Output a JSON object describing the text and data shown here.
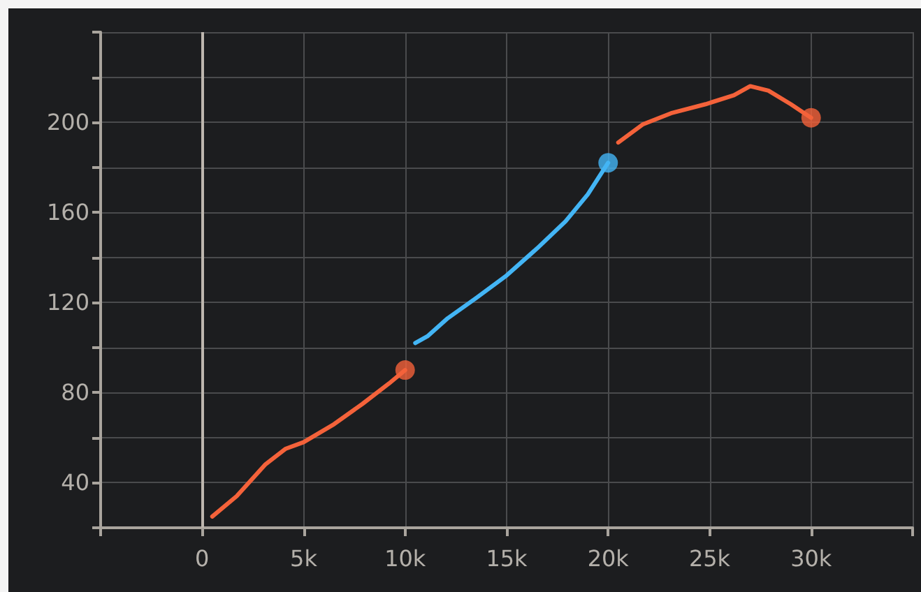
{
  "chart_data": {
    "type": "line",
    "xlim": [
      -5000,
      35000
    ],
    "ylim": [
      20,
      240
    ],
    "xticks": [
      {
        "value": -5000,
        "label": null
      },
      0,
      {
        "value": 5000,
        "label": "5k"
      },
      {
        "value": 10000,
        "label": "10k"
      },
      {
        "value": 15000,
        "label": "15k"
      },
      {
        "value": 20000,
        "label": "20k"
      },
      {
        "value": 25000,
        "label": "25k"
      },
      {
        "value": 30000,
        "label": "30k"
      },
      {
        "value": 35000,
        "label": null
      }
    ],
    "yticks": [
      {
        "value": 20,
        "label": null
      },
      40,
      {
        "value": 60,
        "label": null
      },
      80,
      {
        "value": 100,
        "label": null
      },
      120,
      {
        "value": 140,
        "label": null
      },
      160,
      {
        "value": 180,
        "label": null
      },
      200,
      {
        "value": 220,
        "label": null
      },
      {
        "value": 240,
        "label": null
      }
    ],
    "grid": true,
    "ref_lines": [
      {
        "axis": "x",
        "value": 0,
        "color": "#bdb6ae"
      }
    ],
    "series": [
      {
        "color": "#f4623a",
        "x": [
          500,
          1700,
          3100,
          4100,
          5000,
          6500,
          7900,
          9200,
          10000
        ],
        "values": [
          25,
          34,
          48,
          55,
          58,
          66,
          75,
          84,
          90
        ]
      },
      {
        "color": "#43b5f5",
        "x": [
          10500,
          11100,
          12100,
          13500,
          15000,
          16500,
          17900,
          19000,
          20000
        ],
        "values": [
          102,
          105,
          113,
          122,
          132,
          144,
          156,
          168,
          182
        ]
      },
      {
        "color": "#f4623a",
        "x": [
          20500,
          21700,
          23100,
          24800,
          26200,
          27000,
          27900,
          29000,
          30000
        ],
        "values": [
          191,
          199,
          204,
          208,
          212,
          216,
          214,
          208,
          202
        ]
      },
      {
        "type": "scatter",
        "marker": "circle",
        "color": "#f4623a",
        "x": [
          10000
        ],
        "values": [
          90
        ]
      },
      {
        "type": "scatter",
        "marker": "circle",
        "color": "#43b5f5",
        "x": [
          20000
        ],
        "values": [
          182
        ]
      },
      {
        "type": "scatter",
        "marker": "circle",
        "color": "#f4623a",
        "x": [
          30000
        ],
        "values": [
          202
        ]
      }
    ]
  }
}
